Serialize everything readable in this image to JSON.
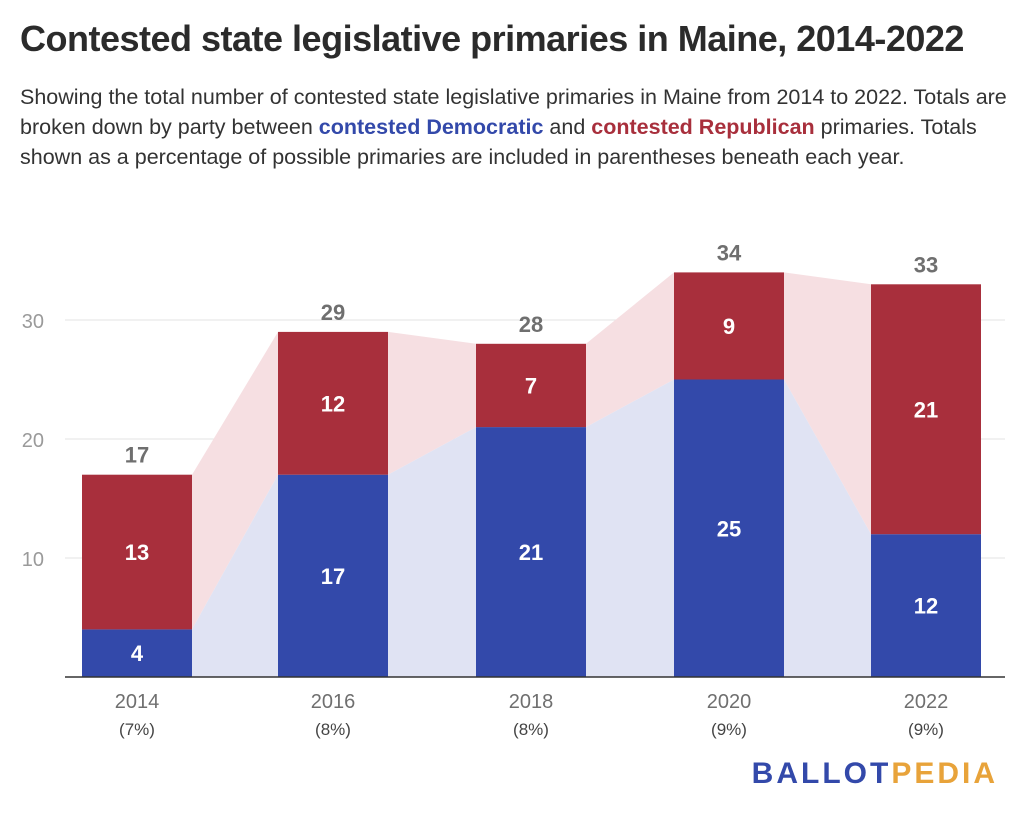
{
  "title": "Contested state legislative primaries in Maine, 2014-2022",
  "subtitle": {
    "part1": "Showing the total number of contested state legislative primaries in Maine from 2014 to 2022. Totals are broken down by party between ",
    "dem_label": "contested Democratic",
    "part2": " and ",
    "rep_label": "contested Republican",
    "part3": " primaries. Totals shown as a percentage of possible primaries are included in parentheses beneath each year."
  },
  "logo": {
    "part1": "BALLOT",
    "part2": "PEDIA"
  },
  "colors": {
    "democratic": "#3349aa",
    "republican": "#a82f3c",
    "democratic_area": "#e0e3f3",
    "republican_area": "#f6dfe2",
    "axis_text": "#9a9a9a",
    "total_label": "#6f6f6f"
  },
  "chart_data": {
    "type": "bar",
    "stacked": true,
    "categories": [
      "2014",
      "2016",
      "2018",
      "2020",
      "2022"
    ],
    "category_sublabels": [
      "(7%)",
      "(8%)",
      "(8%)",
      "(9%)",
      "(9%)"
    ],
    "series": [
      {
        "name": "contested Democratic",
        "values": [
          4,
          17,
          21,
          25,
          12
        ]
      },
      {
        "name": "contested Republican",
        "values": [
          13,
          12,
          7,
          9,
          21
        ]
      }
    ],
    "totals": [
      17,
      29,
      28,
      34,
      33
    ],
    "yticks": [
      10,
      20,
      30
    ],
    "ylim": [
      0,
      35
    ],
    "grid": true
  }
}
